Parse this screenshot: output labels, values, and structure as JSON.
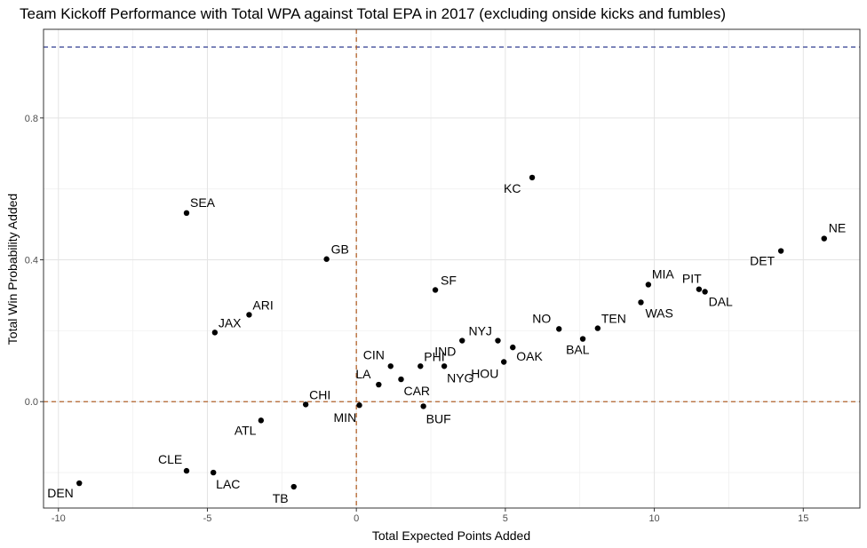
{
  "chart_data": {
    "type": "scatter",
    "title": "Team Kickoff Performance with Total WPA against Total EPA in 2017 (excluding onside kicks and fumbles)",
    "xlabel": "Total Expected Points Added",
    "ylabel": "Total Win Probability Added",
    "xlim": [
      -10.5,
      16.9
    ],
    "ylim": [
      -0.3,
      1.05
    ],
    "xticks": [
      -10,
      -5,
      0,
      5,
      10,
      15
    ],
    "xtick_labels": [
      "-10",
      "-5",
      "0",
      "5",
      "10",
      "15"
    ],
    "yticks": [
      0.0,
      0.4,
      0.8
    ],
    "ytick_labels": [
      "0.0",
      "0.4",
      "0.8"
    ],
    "grid": true,
    "reference_lines": [
      {
        "orientation": "horizontal",
        "value": 1.0,
        "color": "#2f3a8f",
        "style": "dashed"
      },
      {
        "orientation": "horizontal",
        "value": 0.0,
        "color": "#b3632b",
        "style": "dashed"
      },
      {
        "orientation": "vertical",
        "value": 0.0,
        "color": "#b3632b",
        "style": "dashed"
      }
    ],
    "points": [
      {
        "team": "DEN",
        "x": -9.3,
        "y": -0.23
      },
      {
        "team": "CLE",
        "x": -5.7,
        "y": -0.195
      },
      {
        "team": "LAC",
        "x": -4.8,
        "y": -0.2
      },
      {
        "team": "TB",
        "x": -2.1,
        "y": -0.24
      },
      {
        "team": "ATL",
        "x": -3.2,
        "y": -0.053
      },
      {
        "team": "CHI",
        "x": -1.7,
        "y": -0.008
      },
      {
        "team": "MIN",
        "x": 0.1,
        "y": -0.01
      },
      {
        "team": "LA",
        "x": 0.75,
        "y": 0.048
      },
      {
        "team": "CAR",
        "x": 1.5,
        "y": 0.063
      },
      {
        "team": "CIN",
        "x": 1.15,
        "y": 0.1
      },
      {
        "team": "PHI",
        "x": 2.15,
        "y": 0.1
      },
      {
        "team": "BUF",
        "x": 2.25,
        "y": -0.013
      },
      {
        "team": "NYG",
        "x": 2.95,
        "y": 0.1
      },
      {
        "team": "IND",
        "x": 3.55,
        "y": 0.172
      },
      {
        "team": "NYJ",
        "x": 4.75,
        "y": 0.172
      },
      {
        "team": "HOU",
        "x": 4.95,
        "y": 0.112
      },
      {
        "team": "OAK",
        "x": 5.25,
        "y": 0.153
      },
      {
        "team": "SEA",
        "x": -5.7,
        "y": 0.532
      },
      {
        "team": "JAX",
        "x": -4.75,
        "y": 0.195
      },
      {
        "team": "ARI",
        "x": -3.6,
        "y": 0.245
      },
      {
        "team": "GB",
        "x": -1.0,
        "y": 0.402
      },
      {
        "team": "SF",
        "x": 2.65,
        "y": 0.315
      },
      {
        "team": "KC",
        "x": 5.9,
        "y": 0.632
      },
      {
        "team": "NO",
        "x": 6.8,
        "y": 0.205
      },
      {
        "team": "BAL",
        "x": 7.6,
        "y": 0.177
      },
      {
        "team": "TEN",
        "x": 8.1,
        "y": 0.207
      },
      {
        "team": "MIA",
        "x": 9.8,
        "y": 0.33
      },
      {
        "team": "WAS",
        "x": 9.55,
        "y": 0.28
      },
      {
        "team": "PIT",
        "x": 11.5,
        "y": 0.317
      },
      {
        "team": "DAL",
        "x": 11.7,
        "y": 0.31
      },
      {
        "team": "DET",
        "x": 14.25,
        "y": 0.425
      },
      {
        "team": "NE",
        "x": 15.7,
        "y": 0.46
      }
    ]
  }
}
